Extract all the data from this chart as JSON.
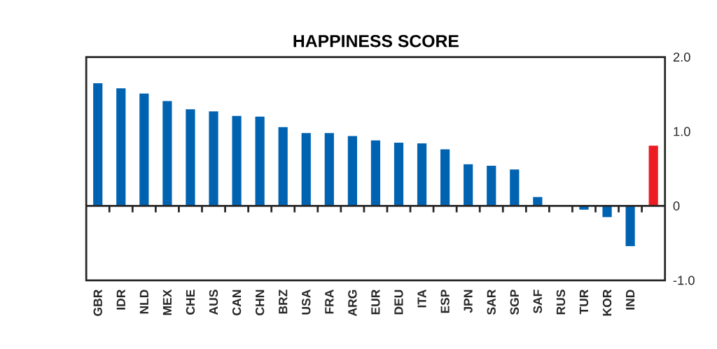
{
  "chart_data": {
    "type": "bar",
    "title": "HAPPINESS SCORE",
    "categories": [
      "GBR",
      "IDR",
      "NLD",
      "MEX",
      "CHE",
      "AUS",
      "CAN",
      "CHN",
      "BRZ",
      "USA",
      "FRA",
      "ARG",
      "EUR",
      "DEU",
      "ITA",
      "ESP",
      "JPN",
      "SAR",
      "SGP",
      "SAF",
      "RUS",
      "TUR",
      "KOR",
      "IND",
      null
    ],
    "values": [
      1.65,
      1.58,
      1.51,
      1.41,
      1.3,
      1.27,
      1.21,
      1.2,
      1.06,
      0.98,
      0.98,
      0.94,
      0.88,
      0.85,
      0.84,
      0.76,
      0.56,
      0.54,
      0.49,
      0.12,
      0,
      -0.05,
      -0.15,
      -0.54,
      0.81
    ],
    "colors": [
      "#0063b1",
      "#0063b1",
      "#0063b1",
      "#0063b1",
      "#0063b1",
      "#0063b1",
      "#0063b1",
      "#0063b1",
      "#0063b1",
      "#0063b1",
      "#0063b1",
      "#0063b1",
      "#0063b1",
      "#0063b1",
      "#0063b1",
      "#0063b1",
      "#0063b1",
      "#0063b1",
      "#0063b1",
      "#0063b1",
      "#0063b1",
      "#0063b1",
      "#0063b1",
      "#0063b1",
      "#ed1c24"
    ],
    "ylim": [
      -1,
      2
    ],
    "yticks": [
      {
        "value": -1,
        "label": "-1.0"
      },
      0,
      {
        "value": 1,
        "label": "1.0"
      },
      {
        "value": 2,
        "label": "2.0"
      }
    ]
  }
}
